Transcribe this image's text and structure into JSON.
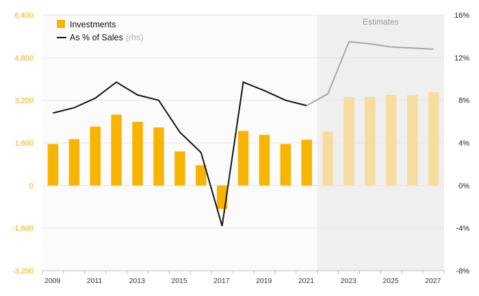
{
  "chart_data": {
    "type": "bar",
    "estimate_start_index": 13,
    "estimates_label": "Estimates",
    "y_left": {
      "min": -3200,
      "max": 6400,
      "ticks": [
        -3200,
        -1600,
        0,
        1600,
        3200,
        4800,
        6400
      ],
      "tick_labels": [
        "-3,200",
        "-1,600",
        "0",
        "1,600",
        "3,200",
        "4,800",
        "6,400"
      ]
    },
    "y_right": {
      "min": -8,
      "max": 16,
      "ticks": [
        -8,
        -4,
        0,
        4,
        8,
        12,
        16
      ],
      "tick_labels": [
        "-8%",
        "-4%",
        "0%",
        "4%",
        "8%",
        "12%",
        "16%"
      ]
    },
    "x": [
      2009,
      2010,
      2011,
      2012,
      2013,
      2014,
      2015,
      2016,
      2017,
      2018,
      2019,
      2020,
      2021,
      2022,
      2023,
      2024,
      2025,
      2026,
      2027
    ],
    "x_tick_labels": [
      "2009",
      "",
      "2011",
      "",
      "2013",
      "",
      "2015",
      "",
      "2017",
      "",
      "2019",
      "",
      "2021",
      "",
      "2023",
      "",
      "2025",
      "",
      "2027"
    ],
    "series": [
      {
        "name": "Investments",
        "type": "bar",
        "axis": "left",
        "color": "#f7b400",
        "estimate_color": "#f7dca0",
        "values": [
          1560,
          1740,
          2210,
          2660,
          2390,
          2180,
          1280,
          760,
          -880,
          2050,
          1900,
          1560,
          1720,
          2020,
          3320,
          3330,
          3400,
          3400,
          3500
        ]
      },
      {
        "name": "As % of Sales",
        "name_note": "(rhs)",
        "type": "line",
        "axis": "right",
        "color": "#111111",
        "estimate_color": "#a8a8a8",
        "values": [
          6.8,
          7.3,
          8.2,
          9.7,
          8.5,
          8.0,
          5.0,
          3.1,
          -3.8,
          9.7,
          8.9,
          8.0,
          7.5,
          8.6,
          13.5,
          13.3,
          13.0,
          12.9,
          12.8
        ]
      }
    ],
    "legend": {
      "position": "top-left"
    },
    "grid": true
  }
}
